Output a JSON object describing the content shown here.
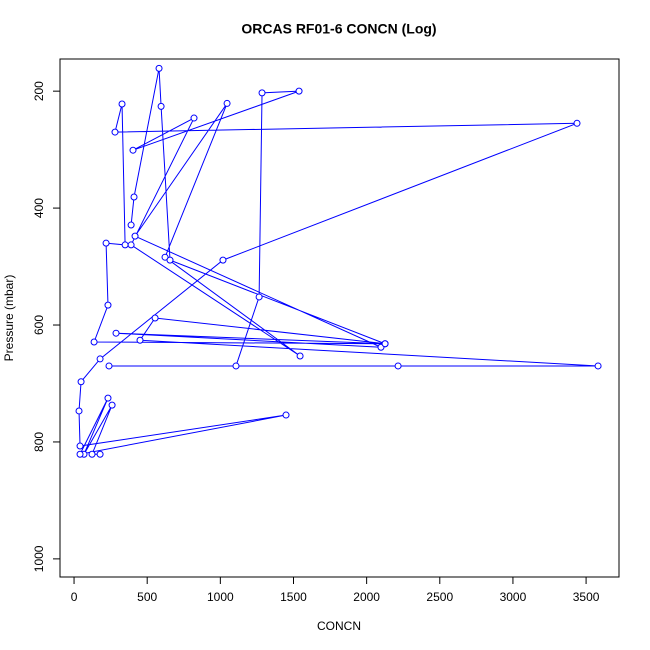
{
  "chart_data": {
    "type": "line",
    "title": "ORCAS RF01-6 CONCN (Log)",
    "xlabel": "CONCN",
    "ylabel": "Pressure (mbar)",
    "color": "#0000ff",
    "x": [
      178,
      123,
      260,
      68,
      232,
      41,
      1449,
      41,
      34,
      48,
      178,
      1018,
      3438,
      280,
      328,
      349,
      219,
      232,
      137,
      2126,
      287,
      2098,
      417,
      1046,
      622,
      1545,
      390,
      820,
      403,
      1538,
      1285,
      1265,
      1107,
      239,
      2215,
      3582,
      451,
      554,
      2126,
      656,
      595,
      581,
      410,
      390
    ],
    "values": [
      821,
      821,
      737,
      821,
      725,
      821,
      754,
      807,
      747,
      697,
      658,
      489,
      255,
      270,
      222,
      463,
      460,
      566,
      629,
      632,
      614,
      638,
      448,
      221,
      484,
      653,
      463,
      246,
      301,
      200,
      203,
      552,
      670,
      670,
      670,
      670,
      626,
      588,
      632,
      489,
      226,
      161,
      381,
      429
    ],
    "xlim": [
      -96,
      3725
    ],
    "ylim": [
      1031,
      145
    ],
    "xticks": [
      0,
      500,
      1000,
      1500,
      2000,
      2500,
      3000,
      3500
    ],
    "yticks": [
      200,
      400,
      600,
      800,
      1000
    ]
  }
}
